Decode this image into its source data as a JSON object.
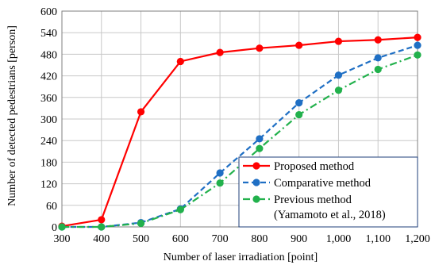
{
  "chart_data": {
    "type": "line",
    "title": "",
    "xlabel": "Number of laser irradiation [point]",
    "ylabel": "Number of detected pedestrians [person]",
    "x": [
      300,
      400,
      500,
      600,
      700,
      800,
      900,
      1000,
      1100,
      1200
    ],
    "x_tick_labels": [
      "300",
      "400",
      "500",
      "600",
      "700",
      "800",
      "900",
      "1,000",
      "1,100",
      "1,200"
    ],
    "xlim": [
      300,
      1200
    ],
    "ylim": [
      0,
      600
    ],
    "y_ticks": [
      0,
      60,
      120,
      180,
      240,
      300,
      360,
      420,
      480,
      540,
      600
    ],
    "y_tick_labels": [
      "0",
      "60",
      "120",
      "180",
      "240",
      "300",
      "360",
      "420",
      "480",
      "540",
      "600"
    ],
    "grid": true,
    "legend_position": "bottom-right",
    "series": [
      {
        "name": "Proposed method",
        "color": "#ff0000",
        "line_style": "solid",
        "values": [
          2,
          20,
          320,
          460,
          485,
          497,
          505,
          516,
          520,
          527
        ]
      },
      {
        "name": "Comparative method",
        "color": "#1f6fc4",
        "line_style": "dashed",
        "values": [
          0,
          0,
          12,
          50,
          150,
          245,
          345,
          422,
          470,
          505
        ]
      },
      {
        "name": "Previous method",
        "name_line2": "(Yamamoto et al., 2018)",
        "color": "#22b14c",
        "line_style": "dashdot",
        "values": [
          0,
          0,
          10,
          48,
          122,
          218,
          312,
          380,
          438,
          478
        ]
      }
    ]
  }
}
